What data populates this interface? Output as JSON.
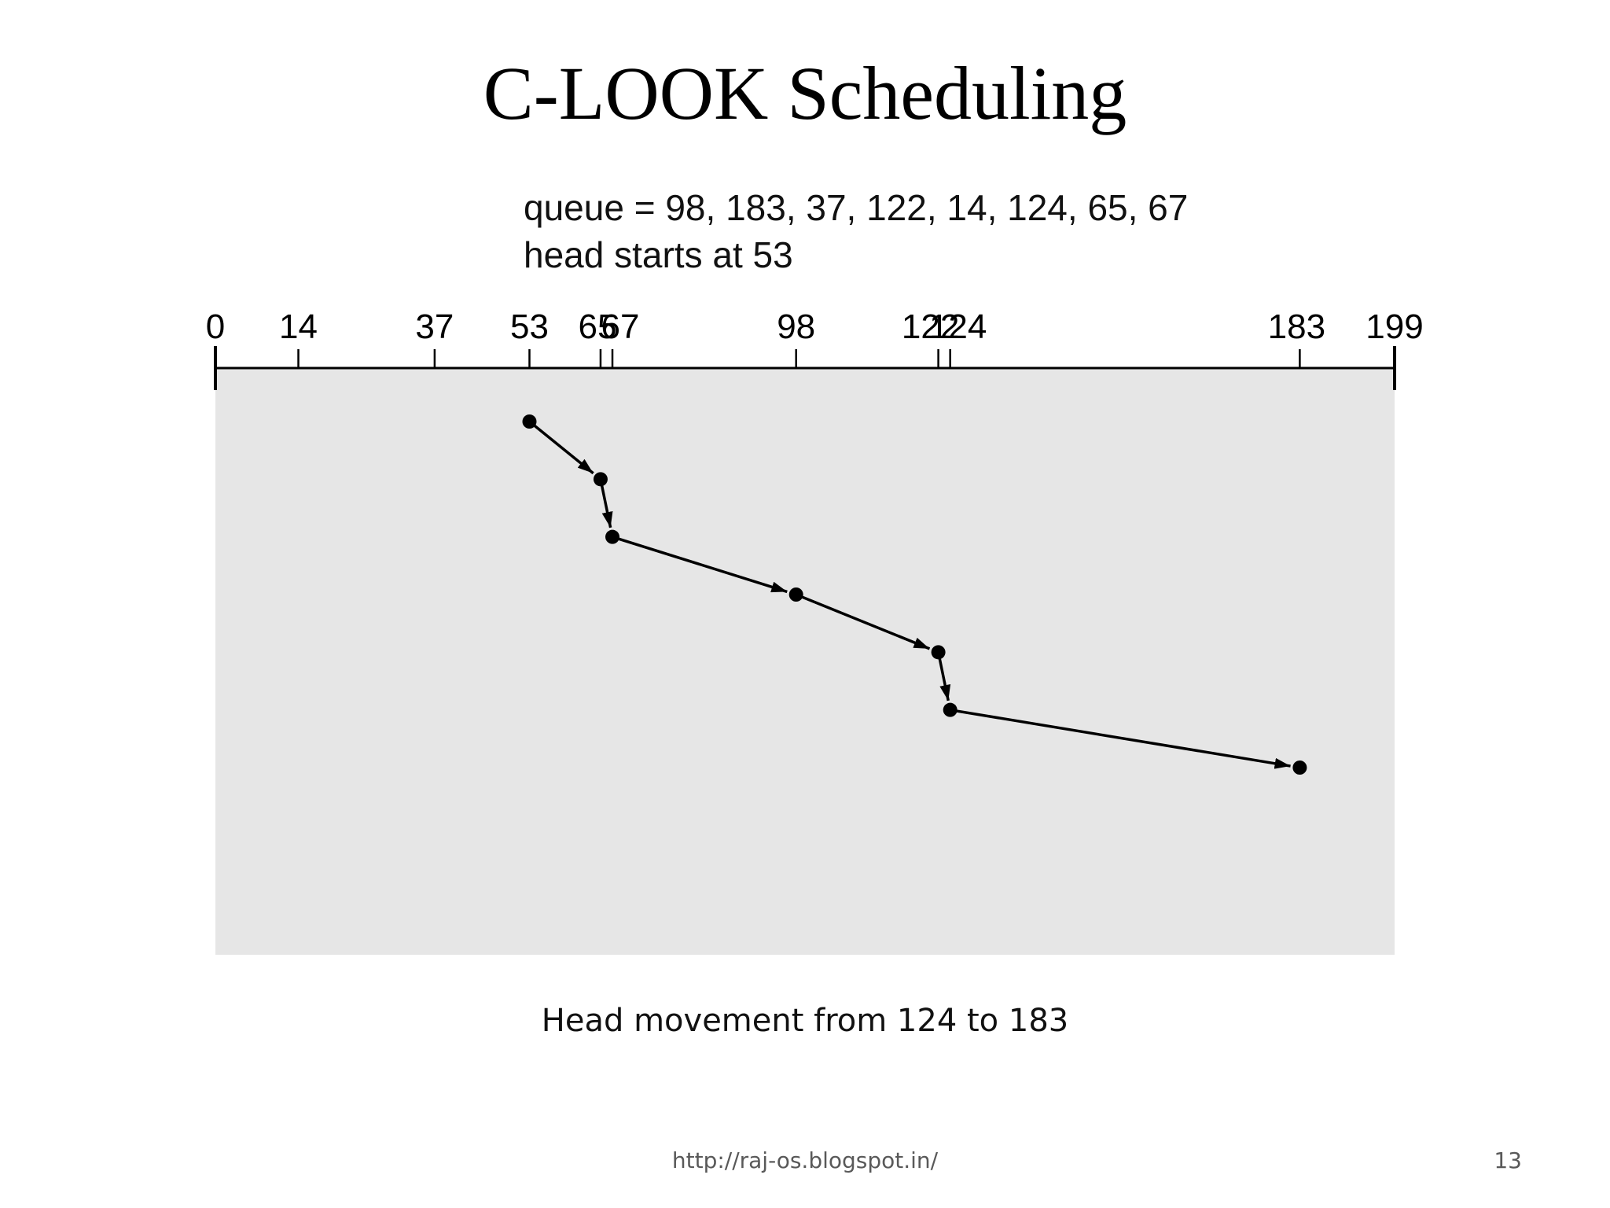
{
  "slide": {
    "title": "C-LOOK Scheduling",
    "caption": "Head movement from 124 to 183",
    "footer_url": "http://raj-os.blogspot.in/",
    "page_number": "13"
  },
  "info": {
    "queue_text": "queue = 98, 183, 37, 122, 14, 124, 65, 67",
    "head_text": "head starts at 53"
  },
  "colors": {
    "panel": "#e6e6e6",
    "ink": "#000000"
  },
  "chart_data": {
    "type": "line",
    "axis": {
      "min": 0,
      "max": 199,
      "tick_values": [
        0,
        14,
        37,
        53,
        65,
        67,
        98,
        122,
        124,
        183,
        199
      ],
      "tick_labels": [
        "0",
        "14",
        "37",
        "53",
        "65",
        "67",
        "98",
        "122",
        "124",
        "183",
        "199"
      ]
    },
    "head_path": [
      53,
      65,
      67,
      98,
      122,
      124,
      183
    ]
  }
}
